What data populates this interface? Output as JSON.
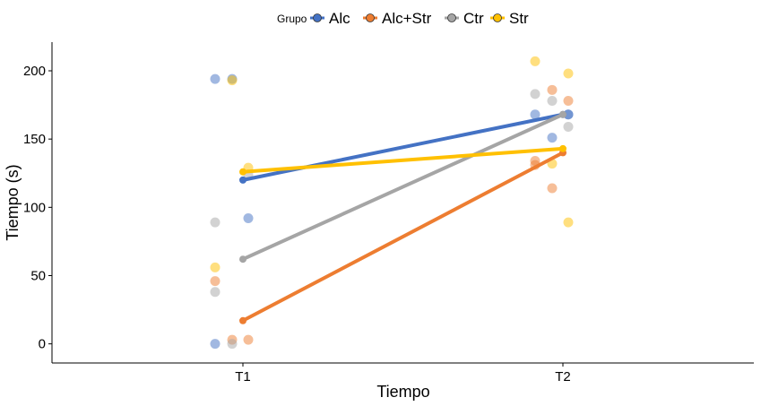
{
  "chart_data": {
    "type": "line",
    "xlabel": "Tiempo",
    "ylabel": "Tiempo (s)",
    "categories": [
      "T1",
      "T2"
    ],
    "ylim": [
      -14,
      221
    ],
    "yticks": [
      0,
      50,
      100,
      150,
      200
    ],
    "grid": false,
    "legend": {
      "title": "Grupo",
      "placement": "top"
    },
    "series": [
      {
        "name": "Alc",
        "color": "#4472C4",
        "means": [
          120,
          168
        ],
        "points": {
          "T1": [
            194,
            194,
            92,
            0
          ],
          "T2": [
            168,
            168,
            168,
            151
          ]
        }
      },
      {
        "name": "Alc+Str",
        "color": "#ED7D31",
        "means": [
          17,
          140
        ],
        "points": {
          "T1": [
            46,
            3,
            3
          ],
          "T2": [
            186,
            178,
            134,
            131,
            114
          ]
        }
      },
      {
        "name": "Ctr",
        "color": "#A5A5A5",
        "means": [
          62,
          168
        ],
        "points": {
          "T1": [
            124,
            89,
            38,
            0
          ],
          "T2": [
            183,
            178,
            159
          ]
        }
      },
      {
        "name": "Str",
        "color": "#FFC000",
        "means": [
          126,
          143
        ],
        "points": {
          "T1": [
            193,
            129,
            56
          ],
          "T2": [
            207,
            198,
            132,
            89
          ]
        }
      }
    ]
  }
}
